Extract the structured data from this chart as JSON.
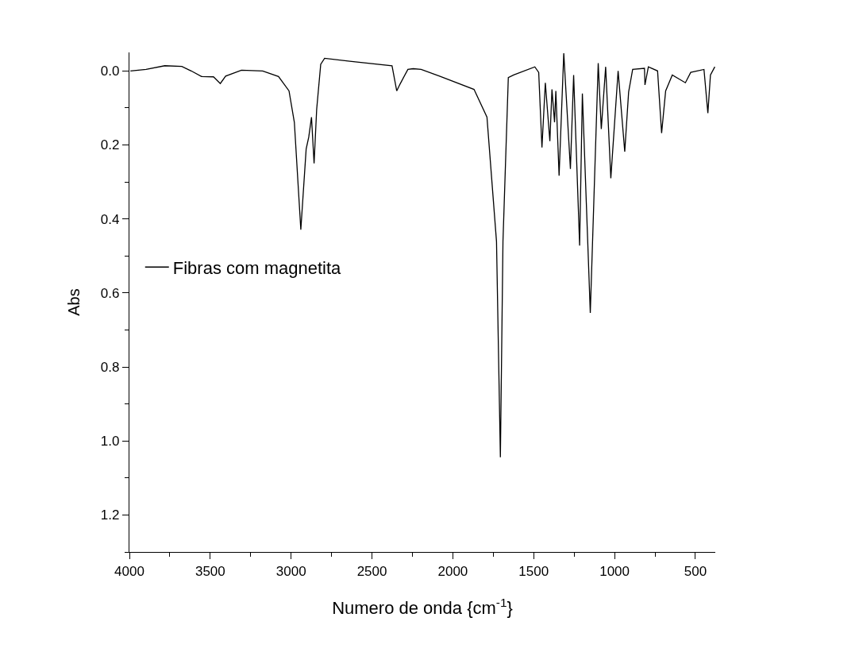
{
  "chart_data": {
    "type": "line",
    "xlabel": "Numero de onda {cm$^{-1}$}",
    "ylabel": "Abs",
    "xlim": [
      4000,
      377
    ],
    "xticks": [
      4000,
      3500,
      3000,
      2500,
      2000,
      1500,
      1000,
      500
    ],
    "ylim": [
      1.3,
      -0.05
    ],
    "yticks": [
      {
        "value": 0,
        "label": "0.0"
      },
      0.2,
      0.4,
      0.6,
      0.8,
      {
        "value": 1,
        "label": "1.0"
      },
      1.2
    ],
    "legend": "left",
    "marker": "none",
    "line_style": "solid",
    "x": [
      3994,
      3897,
      3781,
      3676,
      3618,
      3554,
      3480,
      3438,
      3405,
      3307,
      3176,
      3078,
      3013,
      2980,
      2940,
      2907,
      2891,
      2874,
      2858,
      2842,
      2817,
      2793,
      2637,
      2376,
      2347,
      2327,
      2278,
      2245,
      2196,
      2082,
      1869,
      1789,
      1730,
      1706,
      1690,
      1657,
      1624,
      1493,
      1469,
      1449,
      1428,
      1400,
      1387,
      1371,
      1363,
      1343,
      1314,
      1273,
      1253,
      1216,
      1199,
      1150,
      1101,
      1082,
      1055,
      1023,
      978,
      937,
      913,
      888,
      815,
      812,
      791,
      734,
      709,
      684,
      643,
      562,
      529,
      447,
      423,
      407,
      380
    ],
    "series": [
      {
        "name": "Fibras com magnetita",
        "color": "#000000",
        "values": [
          0,
          -0.004,
          -0.014,
          -0.012,
          0,
          0.015,
          0.016,
          0.034,
          0.014,
          -0.002,
          0,
          0.015,
          0.054,
          0.139,
          0.429,
          0.211,
          0.179,
          0.125,
          0.25,
          0.104,
          -0.018,
          -0.034,
          -0.026,
          -0.014,
          0.054,
          0.036,
          -0.004,
          -0.006,
          -0.004,
          0.014,
          0.05,
          0.125,
          0.461,
          1.044,
          0.461,
          0.018,
          0.011,
          -0.011,
          0.004,
          0.207,
          0.032,
          0.19,
          0.05,
          0.139,
          0.054,
          0.283,
          -0.048,
          0.265,
          0.011,
          0.472,
          0.061,
          0.654,
          -0.021,
          0.157,
          -0.011,
          0.29,
          0,
          0.218,
          0.057,
          -0.004,
          -0.007,
          0.038,
          -0.011,
          0,
          0.168,
          0.054,
          0.011,
          0.032,
          0.004,
          -0.004,
          0.114,
          0.011,
          -0.011
        ]
      }
    ]
  }
}
